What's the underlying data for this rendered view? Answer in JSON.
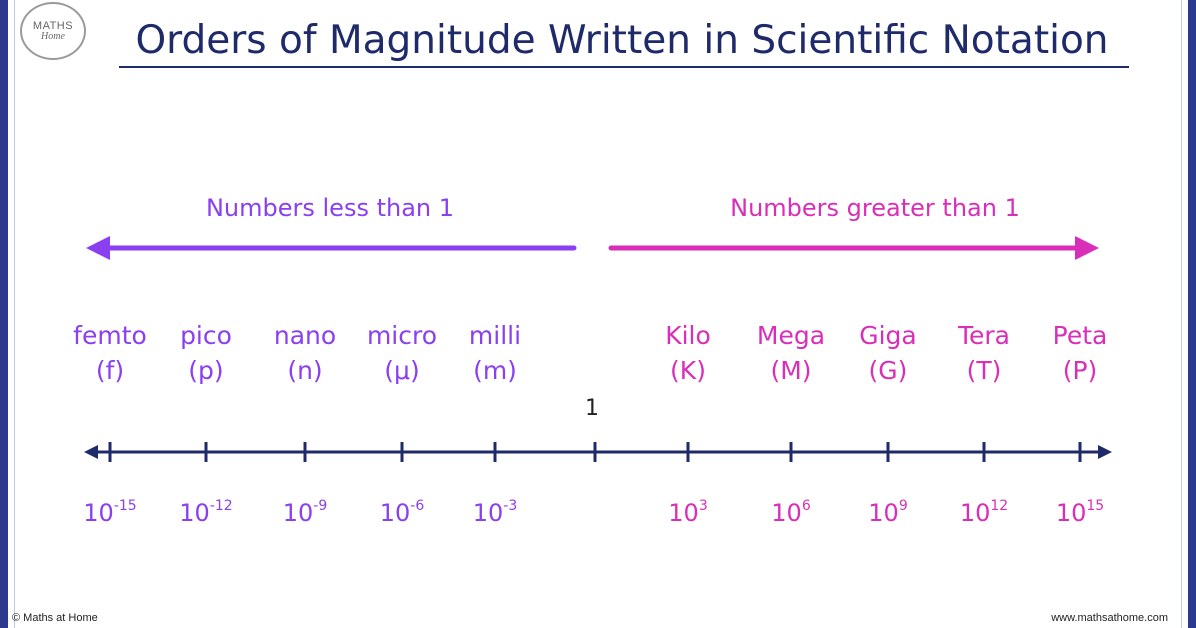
{
  "logo": {
    "line1": "MATHS",
    "line2": "Home"
  },
  "title": "Orders of Magnitude Written in Scientific Notation",
  "labels": {
    "less": "Numbers less than 1",
    "greater": "Numbers greater than 1"
  },
  "center_label": "1",
  "prefixes_small": [
    {
      "name": "femto",
      "symbol": "(f)",
      "base": "10",
      "exp": "-15"
    },
    {
      "name": "pico",
      "symbol": "(p)",
      "base": "10",
      "exp": "-12"
    },
    {
      "name": "nano",
      "symbol": "(n)",
      "base": "10",
      "exp": "-9"
    },
    {
      "name": "micro",
      "symbol": "(μ)",
      "base": "10",
      "exp": "-6"
    },
    {
      "name": "milli",
      "symbol": "(m)",
      "base": "10",
      "exp": "-3"
    }
  ],
  "prefixes_large": [
    {
      "name": "Kilo",
      "symbol": "(K)",
      "base": "10",
      "exp": "3"
    },
    {
      "name": "Mega",
      "symbol": "(M)",
      "base": "10",
      "exp": "6"
    },
    {
      "name": "Giga",
      "symbol": "(G)",
      "base": "10",
      "exp": "9"
    },
    {
      "name": "Tera",
      "symbol": "(T)",
      "base": "10",
      "exp": "12"
    },
    {
      "name": "Peta",
      "symbol": "(P)",
      "base": "10",
      "exp": "15"
    }
  ],
  "footer": {
    "left": "© Maths at Home",
    "right": "www.mathsathome.com"
  },
  "colors": {
    "small": "#8a3ff0",
    "large": "#d92fb8",
    "axis": "#1f2a6b",
    "title": "#1f2a6b"
  }
}
